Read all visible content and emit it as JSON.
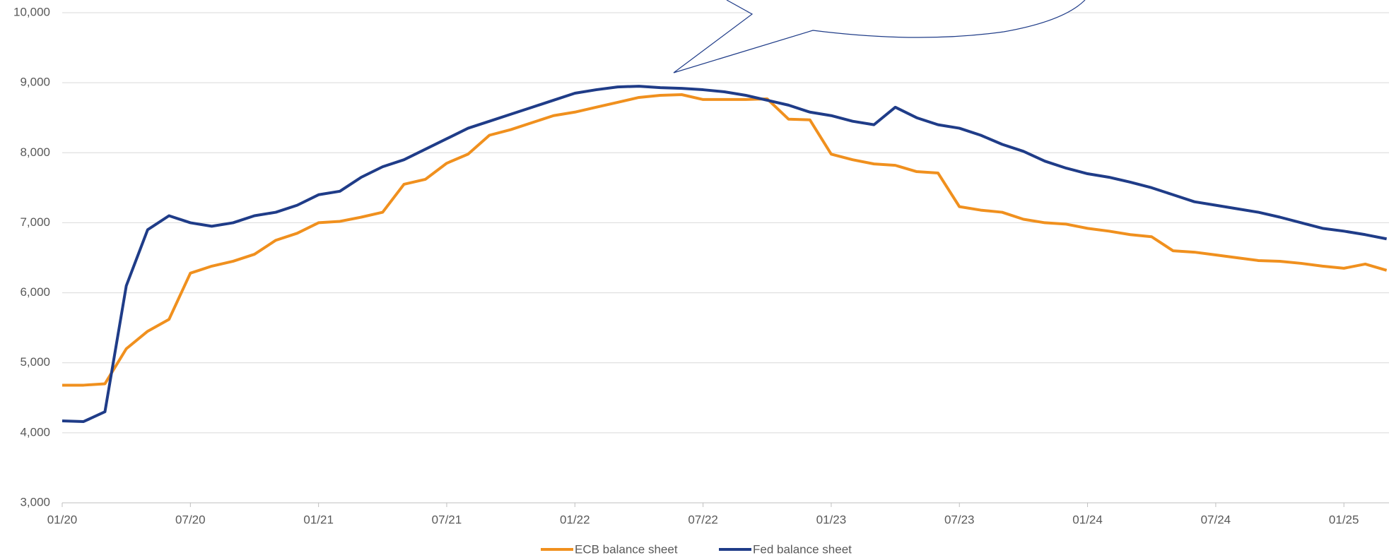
{
  "chart_data": {
    "type": "line",
    "categories": [
      "01/20",
      null,
      null,
      null,
      null,
      null,
      "07/20",
      null,
      null,
      null,
      null,
      null,
      "01/21",
      null,
      null,
      null,
      null,
      null,
      "07/21",
      null,
      null,
      null,
      null,
      null,
      "01/22",
      null,
      null,
      null,
      null,
      null,
      "07/22",
      null,
      null,
      null,
      null,
      null,
      "01/23",
      null,
      null,
      null,
      null,
      null,
      "07/23",
      null,
      null,
      null,
      null,
      null,
      "01/24",
      null,
      null,
      null,
      null,
      null,
      "07/24",
      null,
      null,
      null,
      null,
      null,
      "01/25",
      null,
      null
    ],
    "series": [
      {
        "name": "ECB balance sheet",
        "color": "#f0901e",
        "values": [
          4680,
          4680,
          4700,
          5200,
          5450,
          5620,
          6280,
          6380,
          6450,
          6550,
          6750,
          6850,
          7000,
          7020,
          7080,
          7150,
          7550,
          7620,
          7850,
          7980,
          8250,
          8330,
          8430,
          8530,
          8580,
          8650,
          8720,
          8790,
          8820,
          8830,
          8760,
          8760,
          8760,
          8770,
          8480,
          8470,
          7980,
          7900,
          7840,
          7820,
          7730,
          7710,
          7230,
          7180,
          7150,
          7050,
          7000,
          6980,
          6920,
          6880,
          6830,
          6800,
          6600,
          6580,
          6540,
          6500,
          6460,
          6450,
          6420,
          6380,
          6350,
          6410,
          6320
        ]
      },
      {
        "name": "Fed balance sheet",
        "color": "#1f3c88",
        "values": [
          4170,
          4160,
          4300,
          6100,
          6900,
          7100,
          7000,
          6950,
          7000,
          7100,
          7150,
          7250,
          7400,
          7450,
          7650,
          7800,
          7900,
          8050,
          8200,
          8350,
          8450,
          8550,
          8650,
          8750,
          8850,
          8900,
          8940,
          8950,
          8930,
          8920,
          8900,
          8870,
          8820,
          8750,
          8680,
          8580,
          8530,
          8450,
          8400,
          8650,
          8500,
          8400,
          8350,
          8250,
          8120,
          8020,
          7880,
          7780,
          7700,
          7650,
          7580,
          7500,
          7400,
          7300,
          7250,
          7200,
          7150,
          7080,
          7000,
          6920,
          6880,
          6830,
          6770
        ]
      }
    ],
    "ylim": [
      3000,
      10000
    ],
    "yticks": [
      {
        "value": 3000,
        "label": "3,000"
      },
      {
        "value": 4000,
        "label": "4,000"
      },
      {
        "value": 5000,
        "label": "5,000"
      },
      {
        "value": 6000,
        "label": "6,000"
      },
      {
        "value": 7000,
        "label": "7,000"
      },
      {
        "value": 8000,
        "label": "8,000"
      },
      {
        "value": 9000,
        "label": "9,000"
      },
      {
        "value": 10000,
        "label": "10,000"
      }
    ],
    "grid": true
  }
}
